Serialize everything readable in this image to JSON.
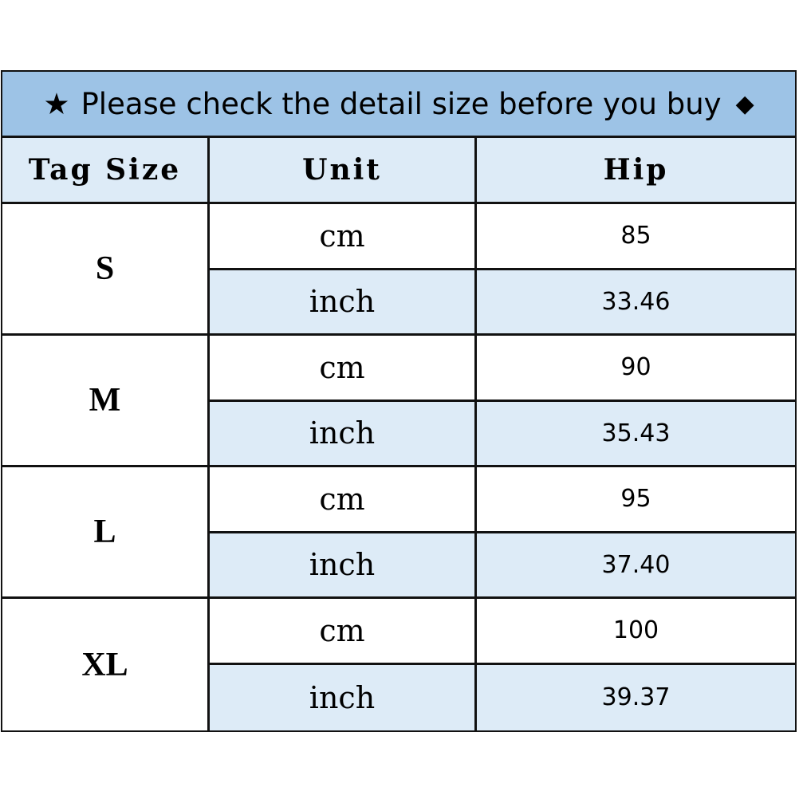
{
  "title": {
    "star_icon": "★",
    "text": "Please check the detail size before you buy",
    "diamond_icon": "◆"
  },
  "headers": [
    "Tag Size",
    "Unit",
    "Hip"
  ],
  "rows": [
    {
      "size": "S",
      "cm_label": "cm",
      "cm": "85",
      "inch_label": "inch",
      "inch": "33.46"
    },
    {
      "size": "M",
      "cm_label": "cm",
      "cm": "90",
      "inch_label": "inch",
      "inch": "35.43"
    },
    {
      "size": "L",
      "cm_label": "cm",
      "cm": "95",
      "inch_label": "inch",
      "inch": "37.40"
    },
    {
      "size": "XL",
      "cm_label": "cm",
      "cm": "100",
      "inch_label": "inch",
      "inch": "39.37"
    }
  ],
  "colors": {
    "title_bg": "#9DC3E6",
    "header_bg": "#DDEBF7",
    "alt_row_bg": "#DDEBF7"
  }
}
